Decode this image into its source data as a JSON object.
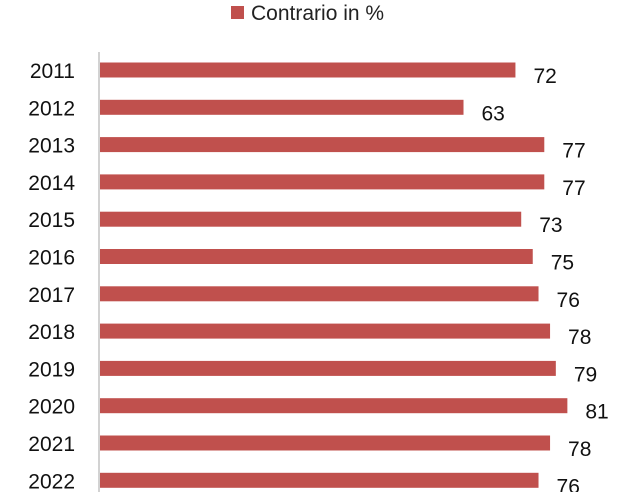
{
  "chart_data": {
    "type": "bar",
    "orientation": "horizontal",
    "categories": [
      "2011",
      "2012",
      "2013",
      "2014",
      "2015",
      "2016",
      "2017",
      "2018",
      "2019",
      "2020",
      "2021",
      "2022"
    ],
    "series": [
      {
        "name": "Contrario in %",
        "values": [
          72,
          63,
          77,
          77,
          73,
          75,
          76,
          78,
          79,
          81,
          78,
          76
        ],
        "color": "#c0504d"
      }
    ],
    "xlim": [
      0,
      100
    ],
    "legend_position": "top-center",
    "grid": false,
    "data_labels": true
  }
}
